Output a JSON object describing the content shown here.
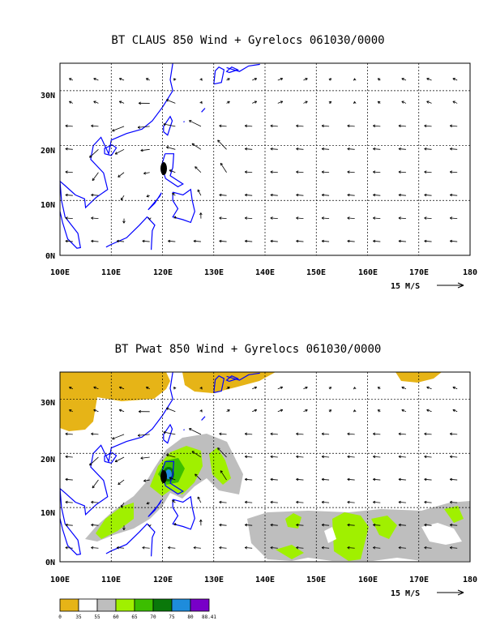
{
  "panels": [
    {
      "title": "BT CLAUS 850 Wind + Gyrelocs 061030/0000",
      "lat_labels": [
        "30N",
        "20N",
        "10N",
        "0N"
      ],
      "lon_labels": [
        "100E",
        "110E",
        "120E",
        "130E",
        "140E",
        "150E",
        "160E",
        "170E",
        "180"
      ],
      "scale_label": "15 M/S"
    },
    {
      "title": "BT Pwat 850 Wind + Gyrelocs 061030/0000",
      "lat_labels": [
        "30N",
        "20N",
        "10N",
        "0N"
      ],
      "lon_labels": [
        "100E",
        "110E",
        "120E",
        "130E",
        "140E",
        "150E",
        "160E",
        "170E",
        "180"
      ],
      "scale_label": "15 M/S"
    }
  ],
  "colorbar": {
    "labels": [
      "0",
      "35",
      "55",
      "60",
      "65",
      "70",
      "75",
      "80",
      "88.41"
    ],
    "colors": [
      "#e6b417",
      "#ffffff",
      "#bebebe",
      "#a0f000",
      "#3cbe00",
      "#0a780a",
      "#1e8cdc",
      "#7800c8"
    ]
  },
  "colors": {
    "coast": "#0000ff",
    "frame": "#000000",
    "gyre": "#000000"
  }
}
